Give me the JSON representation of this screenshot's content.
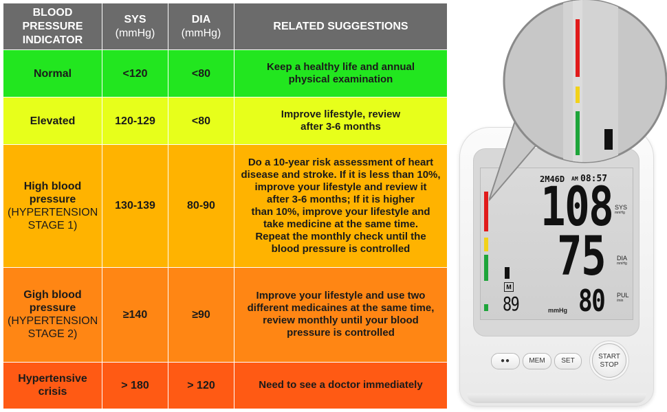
{
  "table": {
    "headers": {
      "indicator": [
        "BLOOD PRESSURE",
        "INDICATOR"
      ],
      "sys": "SYS",
      "sys_unit": "(mmHg)",
      "dia": "DIA",
      "dia_unit": "(mmHg)",
      "suggestions": "RELATED SUGGESTIONS"
    },
    "rows": [
      {
        "level": [
          "Normal"
        ],
        "level_sub": [],
        "sys": "<120",
        "dia": "<80",
        "suggestion": [
          "Keep a healthy life and annual",
          "physical examination"
        ],
        "color": "#22e61f"
      },
      {
        "level": [
          "Elevated"
        ],
        "level_sub": [],
        "sys": "120-129",
        "dia": "<80",
        "suggestion": [
          "Improve lifestyle, review",
          "after 3-6 months"
        ],
        "color": "#e7ff1b"
      },
      {
        "level": [
          "High blood",
          "pressure"
        ],
        "level_sub": [
          "(HYPERTENSION",
          "STAGE 1)"
        ],
        "sys": "130-139",
        "dia": "80-90",
        "suggestion": [
          "Do a 10-year risk assessment of heart",
          "disease and stroke. If it is less than 10%,",
          "improve your lifestyle and review it",
          "after 3-6 months; If it is higher",
          "than 10%, improve your lifestyle and",
          "take medicine at the same time.",
          "Repeat the monthly check until the",
          "blood pressure is controlled"
        ],
        "color": "#ffb300"
      },
      {
        "level": [
          "Gigh blood",
          "pressure"
        ],
        "level_sub": [
          "(HYPERTENSION",
          "STAGE 2)"
        ],
        "sys": "≥140",
        "dia": "≥90",
        "suggestion": [
          "Improve your lifestyle and use two",
          "different medicaines at the same time,",
          "review monthly until your blood",
          "pressure is controlled"
        ],
        "color": "#ff8614"
      },
      {
        "level": [
          "Hypertensive",
          "crisis"
        ],
        "level_sub": [],
        "sys": "> 180",
        "dia": "> 120",
        "suggestion": [
          "Need to see a doctor immediately"
        ],
        "color": "#ff5a14"
      }
    ],
    "header_color": "#6b6b6b"
  },
  "device": {
    "lcd": {
      "date": "2M46D",
      "ampm": "AM",
      "time": "08:57",
      "sys_value": "108",
      "dia_value": "75",
      "pul_value": "80",
      "memory_count": "89",
      "mem_indicator": "M",
      "unit": "mmHg",
      "sys_label": "SYS",
      "sys_unit": "mmHg",
      "dia_label": "DIA",
      "dia_unit": "mmHg",
      "pul_label": "PUL",
      "pul_unit": "/min"
    },
    "buttons": {
      "user": "user-icon",
      "mem": "MEM",
      "set": "SET",
      "start": "START",
      "stop": "STOP"
    },
    "indicator_colors": {
      "red": "#e11b1b",
      "yellow": "#f2d21a",
      "green": "#1ea53a"
    }
  }
}
